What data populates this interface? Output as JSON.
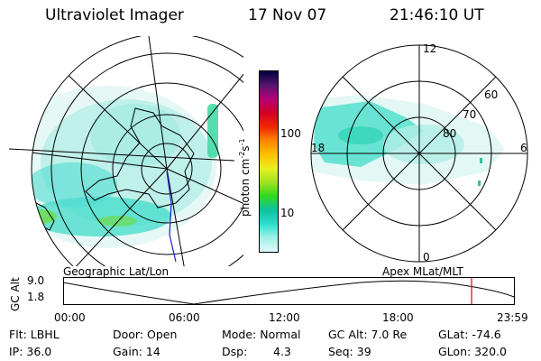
{
  "header": {
    "title": "Ultraviolet Imager",
    "date": "17 Nov 07",
    "time": "21:46:10 UT"
  },
  "colorbar": {
    "unit_label": "photon cm",
    "unit_exp1": "-2",
    "unit_s": "s",
    "unit_exp2": "-1",
    "tick_100": "100",
    "tick_10": "10",
    "colors": [
      "#000040",
      "#5a1470",
      "#b0007a",
      "#d40024",
      "#f02800",
      "#ff8000",
      "#ffc000",
      "#e8f020",
      "#9ce020",
      "#30d820",
      "#10c0a0",
      "#30e0d0",
      "#a0f0e8",
      "#e0f8f8"
    ]
  },
  "left_map": {
    "caption": "Geographic Lat/Lon"
  },
  "right_map": {
    "caption": "Apex MLat/MLT",
    "labels": {
      "mlt_12": "12",
      "mlt_6": "6",
      "mlt_18": "18",
      "mlt_0": "0",
      "lat_60": "60",
      "lat_70": "70",
      "lat_80": "80"
    }
  },
  "timeline": {
    "ylabel": "GC Alt",
    "ytick_top": "9.0",
    "ytick_bottom": "1.8",
    "xticks": [
      "00:00",
      "06:00",
      "12:00",
      "18:00",
      "23:59"
    ],
    "marker_color": "#e00000"
  },
  "footer": {
    "filter": "Flt: LBHL",
    "ip": "IP: 36.0",
    "door": "Door: Open",
    "gain": "Gain: 14",
    "mode": "Mode: Normal",
    "dsp": "Dsp:",
    "dsp_value": "4.3",
    "gc_alt": "GC Alt: 7.0 Re",
    "seq": "Seq: 39",
    "glat": "GLat: -74.6",
    "glon": "GLon: 320.0"
  }
}
